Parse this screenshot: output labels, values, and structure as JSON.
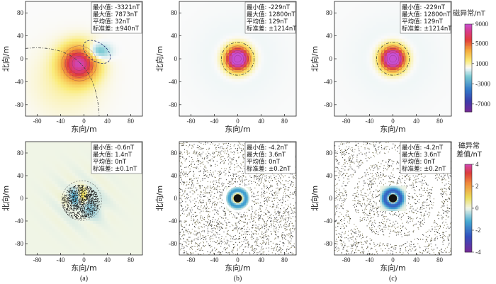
{
  "chart_data": [
    {
      "type": "heatmap",
      "title": "",
      "xlabel": "东向/m",
      "ylabel": "北向/m",
      "xlim": [
        -100,
        100
      ],
      "ylim": [
        -100,
        100
      ],
      "xticks": [
        "-80",
        "-40",
        "0",
        "40",
        "80"
      ],
      "yticks": [
        "80",
        "40",
        "0",
        "-40",
        "-80"
      ],
      "stats": [
        "最小值: -3321nT",
        "最大值: 7873nT",
        "平均值: 32nT",
        "标准差: ±940nT"
      ],
      "field": "anomaly_dipole",
      "caption": ""
    },
    {
      "type": "heatmap",
      "title": "",
      "xlabel": "东向/m",
      "ylabel": "北向/m",
      "xlim": [
        -100,
        100
      ],
      "ylim": [
        -100,
        100
      ],
      "xticks": [
        "-80",
        "-40",
        "0",
        "40",
        "80"
      ],
      "yticks": [
        "80",
        "40",
        "0",
        "-40",
        "-80"
      ],
      "stats": [
        "最小值: -229nT",
        "最大值: 12800nT",
        "平均值: 129nT",
        "标准差: ±1214nT"
      ],
      "field": "anomaly_rtp",
      "caption": ""
    },
    {
      "type": "heatmap",
      "title": "",
      "xlabel": "东向/m",
      "ylabel": "北向/m",
      "xlim": [
        -100,
        100
      ],
      "ylim": [
        -100,
        100
      ],
      "xticks": [
        "-80",
        "-40",
        "0",
        "40",
        "80"
      ],
      "yticks": [
        "80",
        "40",
        "0",
        "-40",
        "-80"
      ],
      "stats": [
        "最小值: -229nT",
        "最大值: 12800nT",
        "平均值: 129nT",
        "标准差: ±1214nT"
      ],
      "field": "anomaly_rtp",
      "caption": ""
    },
    {
      "type": "heatmap",
      "title": "",
      "xlabel": "东向/m",
      "ylabel": "北向/m",
      "xlim": [
        -100,
        100
      ],
      "ylim": [
        -100,
        100
      ],
      "xticks": [
        "-80",
        "-40",
        "0",
        "40",
        "80"
      ],
      "yticks": [
        "80",
        "40",
        "0",
        "-40",
        "-80"
      ],
      "stats": [
        "最小值: -0.6nT",
        "最大值: 1.4nT",
        "平均值: 0nT",
        "标准差: ±0.1nT"
      ],
      "field": "diff_a",
      "caption": "(a)"
    },
    {
      "type": "heatmap",
      "title": "",
      "xlabel": "东向/m",
      "ylabel": "北向/m",
      "xlim": [
        -100,
        100
      ],
      "ylim": [
        -100,
        100
      ],
      "xticks": [
        "-80",
        "-40",
        "0",
        "40",
        "80"
      ],
      "yticks": [
        "80",
        "40",
        "0",
        "-40",
        "-80"
      ],
      "stats": [
        "最小值: -4.2nT",
        "最大值: 3.6nT",
        "平均值: 0nT",
        "标准差: ±0.2nT"
      ],
      "field": "diff_b",
      "caption": "(b)"
    },
    {
      "type": "heatmap",
      "title": "",
      "xlabel": "东向/m",
      "ylabel": "北向/m",
      "xlim": [
        -100,
        100
      ],
      "ylim": [
        -100,
        100
      ],
      "xticks": [
        "-80",
        "-40",
        "0",
        "40",
        "80"
      ],
      "yticks": [
        "80",
        "40",
        "0",
        "-40",
        "-80"
      ],
      "stats": [
        "最小值: -4.2nT",
        "最大值: 3.6nT",
        "平均值: 0nT",
        "标准差: ±0.2nT"
      ],
      "field": "diff_c",
      "caption": "(c)"
    }
  ],
  "colorbars": [
    {
      "title_lines": [
        "磁异常/nT"
      ],
      "ticks": [
        "9000",
        "5000",
        "1000",
        "-3000",
        "-7000"
      ],
      "range": [
        -9000,
        9000
      ]
    },
    {
      "title_lines": [
        "磁异常",
        "差值/nT"
      ],
      "ticks": [
        "4",
        "2",
        "0",
        "-2",
        "-4"
      ],
      "range": [
        -4,
        4
      ]
    }
  ]
}
